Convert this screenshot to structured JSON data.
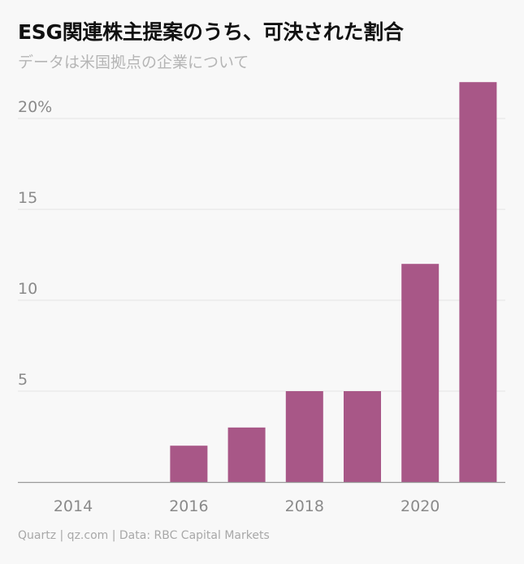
{
  "header": {
    "title": "ESG関連株主提案のうち、可決された割合",
    "subtitle": "データは米国拠点の企業について"
  },
  "footer": {
    "source": "Quartz | qz.com | Data: RBC Capital Markets"
  },
  "colors": {
    "bar": "#a85787",
    "grid": "#e4e4e4",
    "axis": "#9a9a9a",
    "background": "#f8f8f8"
  },
  "chart_data": {
    "type": "bar",
    "title": "ESG関連株主提案のうち、可決された割合",
    "subtitle": "データは米国拠点の企業について",
    "categories": [
      "2014",
      "2015",
      "2016",
      "2017",
      "2018",
      "2019",
      "2020",
      "2021"
    ],
    "values": [
      0,
      0,
      2,
      3,
      5,
      5,
      12,
      22
    ],
    "x_tick_labels": [
      "2014",
      "2016",
      "2018",
      "2020"
    ],
    "y_ticks": [
      5,
      10,
      15,
      20
    ],
    "y_tick_labels": [
      "5",
      "10",
      "15",
      "20%"
    ],
    "ylim": [
      0,
      22
    ],
    "xlabel": "",
    "ylabel": "",
    "grid": true,
    "legend": "none"
  }
}
